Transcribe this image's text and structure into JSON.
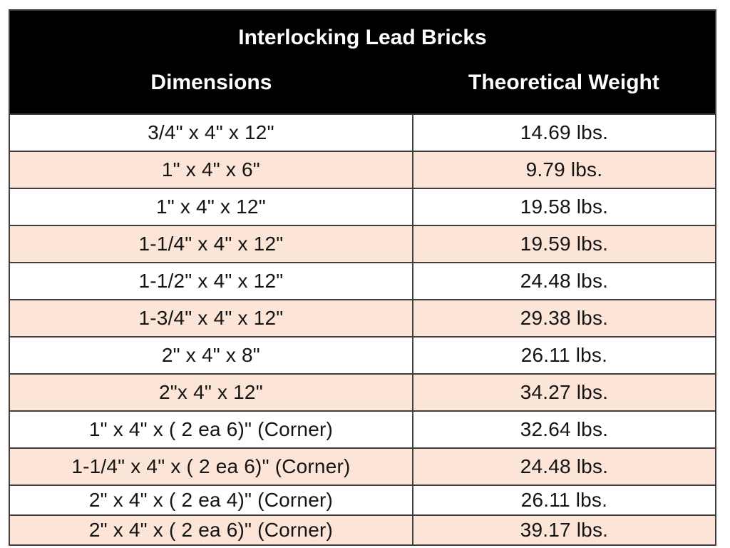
{
  "table": {
    "title": "Interlocking Lead Bricks",
    "columns": [
      "Dimensions",
      "Theoretical Weight"
    ],
    "rows": [
      {
        "dimensions": "3/4\" x 4\" x 12\"",
        "weight": "14.69 lbs."
      },
      {
        "dimensions": "1\" x 4\" x 6\"",
        "weight": "9.79 lbs."
      },
      {
        "dimensions": "1\" x 4\" x 12\"",
        "weight": "19.58 lbs."
      },
      {
        "dimensions": "1-1/4\" x 4\" x 12\"",
        "weight": "19.59 lbs."
      },
      {
        "dimensions": "1-1/2\" x 4\" x 12\"",
        "weight": "24.48 lbs."
      },
      {
        "dimensions": "1-3/4\" x 4\" x 12\"",
        "weight": "29.38 lbs."
      },
      {
        "dimensions": "2\" x 4\" x 8\"",
        "weight": "26.11 lbs."
      },
      {
        "dimensions": "2\"x 4\" x 12\"",
        "weight": "34.27 lbs."
      },
      {
        "dimensions": "1\" x 4\" x ( 2 ea 6)\" (Corner)",
        "weight": "32.64 lbs."
      },
      {
        "dimensions": "1-1/4\" x 4\" x ( 2 ea 6)\" (Corner)",
        "weight": "24.48 lbs."
      },
      {
        "dimensions": "2\" x 4\" x ( 2 ea 4)\" (Corner)",
        "weight": "26.11 lbs."
      },
      {
        "dimensions": "2\" x 4\" x ( 2 ea 6)\" (Corner)",
        "weight": "39.17 lbs."
      }
    ],
    "colors": {
      "header_bg": "#000000",
      "header_text": "#ffffff",
      "row_bg": "#ffffff",
      "row_alt_bg": "#fce4d6",
      "border": "#3f3f3f",
      "text": "#141414"
    }
  }
}
